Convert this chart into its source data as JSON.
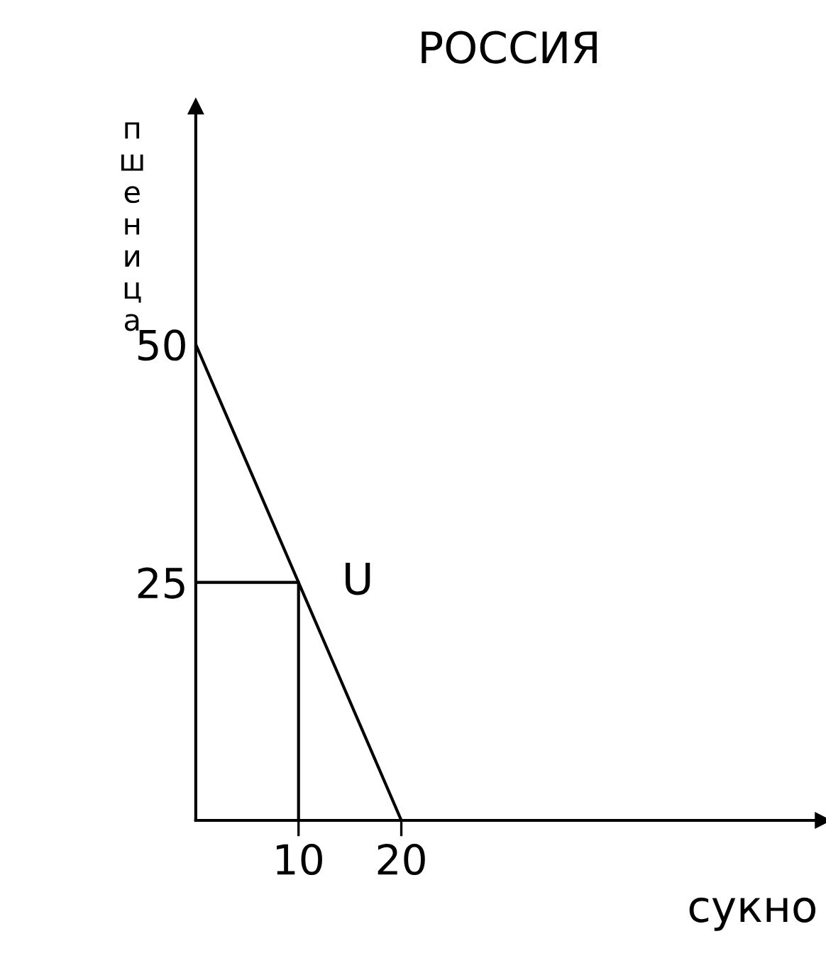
{
  "chart_data": {
    "type": "line",
    "title": "РОССИЯ",
    "xlabel": "сукно",
    "ylabel": "пшеница",
    "xlim": [
      0,
      61
    ],
    "ylim": [
      0,
      75
    ],
    "xticks": [
      10,
      20
    ],
    "yticks": [
      25,
      50
    ],
    "series": [
      {
        "color": "#000000",
        "x": [
          0,
          20
        ],
        "values": [
          50,
          0
        ]
      },
      {
        "color": "#000000",
        "x": [
          0,
          10,
          10
        ],
        "values": [
          25,
          25,
          0
        ]
      }
    ],
    "annotations": [
      {
        "text": "U",
        "x": 10,
        "y": 25
      }
    ],
    "grid": false,
    "legend": false,
    "marker": "none",
    "line_style": "solid"
  }
}
